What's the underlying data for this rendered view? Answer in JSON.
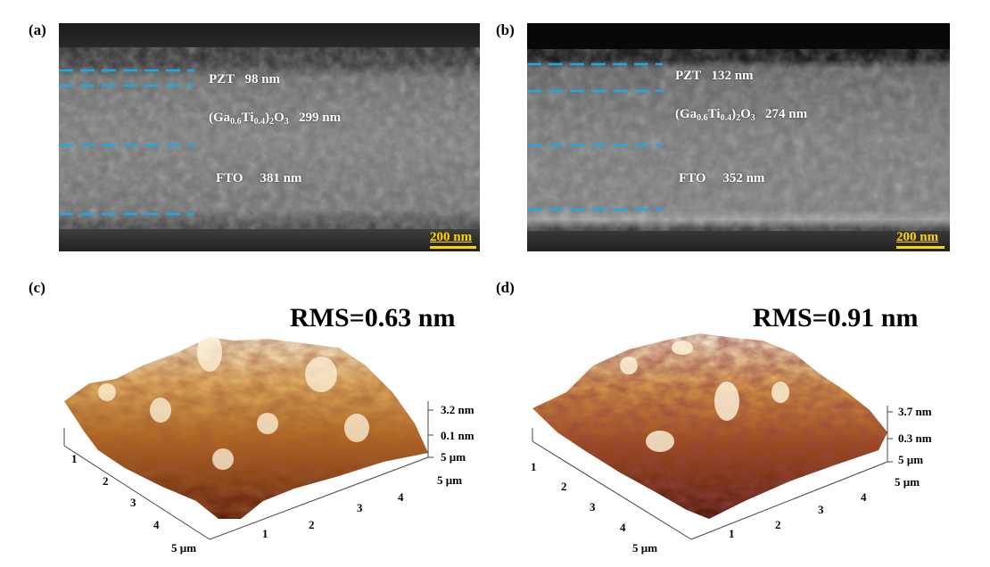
{
  "panels": {
    "a": {
      "label": "(a)",
      "layers": [
        {
          "name": "PZT",
          "thickness": "98 nm"
        },
        {
          "name_parts": [
            "(Ga",
            "0.6",
            "Ti",
            "0.4",
            ")",
            "2",
            "O",
            "3"
          ],
          "thickness": "299 nm"
        },
        {
          "name": "FTO",
          "thickness": "381 nm"
        }
      ],
      "scale_bar": "200 nm"
    },
    "b": {
      "label": "(b)",
      "layers": [
        {
          "name": "PZT",
          "thickness": "132 nm"
        },
        {
          "name_parts": [
            "(Ga",
            "0.6",
            "Ti",
            "0.4",
            ")",
            "2",
            "O",
            "3"
          ],
          "thickness": "274 nm"
        },
        {
          "name": "FTO",
          "thickness": "352 nm"
        }
      ],
      "scale_bar": "200 nm"
    },
    "c": {
      "label": "(c)",
      "rms": "RMS=0.63 nm",
      "z_top": "3.2 nm",
      "z_bottom": "0.1 nm",
      "axis_right_end": "5 µm",
      "axis_right_ticks": [
        "1",
        "2",
        "3",
        "4"
      ],
      "axis_left_ticks": [
        "1",
        "2",
        "3",
        "4"
      ],
      "axis_left_end": "5 µm",
      "z_axis_end": "5 µm"
    },
    "d": {
      "label": "(d)",
      "rms": "RMS=0.91 nm",
      "z_top": "3.7 nm",
      "z_bottom": "0.3 nm",
      "axis_right_end": "5 µm",
      "axis_right_ticks": [
        "1",
        "2",
        "3",
        "4"
      ],
      "axis_left_ticks": [
        "1",
        "2",
        "3",
        "4"
      ],
      "axis_left_end": "5 µm",
      "z_axis_end": "5 µm"
    }
  },
  "colors": {
    "dash_line": "#1ea9e6",
    "scale": "#ffd400",
    "sem_bg": "#3a3a3a",
    "afm_dark": "#5a1a0a",
    "afm_mid": "#a0521a",
    "afm_light": "#f5e6c8"
  }
}
